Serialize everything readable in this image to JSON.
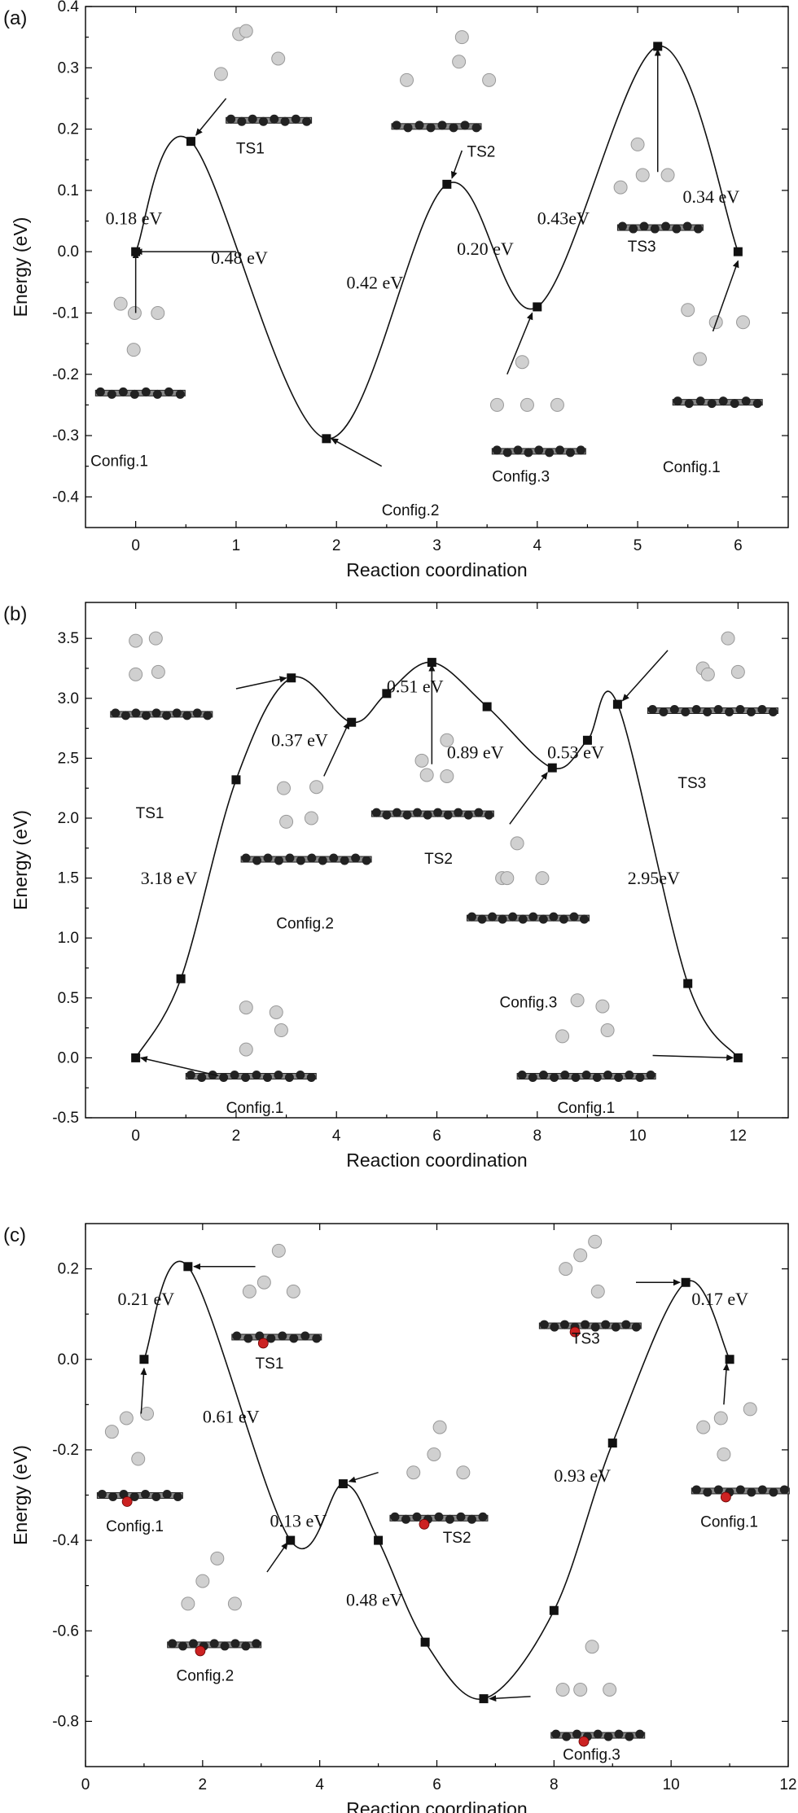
{
  "colors": {
    "line": "#111111",
    "hydrogen": "#d0d0d0",
    "carbon": "#222222",
    "substituent": "#cc2222"
  },
  "chart_data": [
    {
      "type": "line",
      "panel_label": "(a)",
      "xlabel": "Reaction coordination",
      "ylabel": "Energy (eV)",
      "xlim": [
        -0.5,
        6.5
      ],
      "ylim": [
        -0.45,
        0.4
      ],
      "xticks": [
        0,
        1,
        2,
        3,
        4,
        5,
        6
      ],
      "yticks": [
        -0.4,
        -0.3,
        -0.2,
        -0.1,
        0.0,
        0.1,
        0.2,
        0.3,
        0.4
      ],
      "ytick_labels": [
        "-0.4",
        "-0.3",
        "-0.2",
        "-0.1",
        "0.0",
        "0.1",
        "0.2",
        "0.3",
        "0.4"
      ],
      "xtick_labels": [
        "0",
        "1",
        "2",
        "3",
        "4",
        "5",
        "6"
      ],
      "x": [
        0,
        0.55,
        1.9,
        3.1,
        4.0,
        5.2,
        6.0
      ],
      "y": [
        0.0,
        0.18,
        -0.305,
        0.11,
        -0.09,
        0.335,
        0.0
      ],
      "barriers": [
        {
          "text": "0.18 eV",
          "x": -0.3,
          "y": 0.045
        },
        {
          "text": "0.48 eV",
          "x": 0.75,
          "y": -0.02
        },
        {
          "text": "0.42 eV",
          "x": 2.1,
          "y": -0.06
        },
        {
          "text": "0.20 eV",
          "x": 3.2,
          "y": -0.005
        },
        {
          "text": "0.43eV",
          "x": 4.0,
          "y": 0.045
        },
        {
          "text": "0.34 eV",
          "x": 5.45,
          "y": 0.08
        }
      ],
      "configs": [
        {
          "text": "Config.1",
          "x": -0.45,
          "y": -0.35
        },
        {
          "text": "TS1",
          "x": 1.0,
          "y": 0.16
        },
        {
          "text": "Config.2",
          "x": 2.45,
          "y": -0.43
        },
        {
          "text": "TS2",
          "x": 3.3,
          "y": 0.155
        },
        {
          "text": "Config.3",
          "x": 3.55,
          "y": -0.375
        },
        {
          "text": "TS3",
          "x": 4.9,
          "y": 0.0
        },
        {
          "text": "Config.1",
          "x": 5.25,
          "y": -0.36
        }
      ]
    },
    {
      "type": "line",
      "panel_label": "(b)",
      "xlabel": "Reaction coordination",
      "ylabel": "Energy (eV)",
      "xlim": [
        -1,
        13
      ],
      "ylim": [
        -0.5,
        3.8
      ],
      "xticks": [
        0,
        2,
        4,
        6,
        8,
        10,
        12
      ],
      "yticks": [
        -0.5,
        0.0,
        0.5,
        1.0,
        1.5,
        2.0,
        2.5,
        3.0,
        3.5
      ],
      "ytick_labels": [
        "-0.5",
        "0.0",
        "0.5",
        "1.0",
        "1.5",
        "2.0",
        "2.5",
        "3.0",
        "3.5"
      ],
      "xtick_labels": [
        "0",
        "2",
        "4",
        "6",
        "8",
        "10",
        "12"
      ],
      "x": [
        0,
        0.9,
        2.0,
        3.1,
        4.3,
        5.0,
        5.9,
        7.0,
        8.3,
        9.0,
        9.6,
        11.0,
        12.0
      ],
      "y": [
        0.0,
        0.66,
        2.32,
        3.17,
        2.8,
        3.04,
        3.3,
        2.93,
        2.42,
        2.65,
        2.95,
        0.62,
        0.0
      ],
      "barriers": [
        {
          "text": "3.18 eV",
          "x": 0.1,
          "y": 1.45
        },
        {
          "text": "0.37 eV",
          "x": 2.7,
          "y": 2.6
        },
        {
          "text": "0.51 eV",
          "x": 5.0,
          "y": 3.05
        },
        {
          "text": "0.89 eV",
          "x": 6.2,
          "y": 2.5
        },
        {
          "text": "0.53 eV",
          "x": 8.2,
          "y": 2.5
        },
        {
          "text": "2.95eV",
          "x": 9.8,
          "y": 1.45
        }
      ],
      "configs": [
        {
          "text": "TS1",
          "x": 0.0,
          "y": 2.0
        },
        {
          "text": "Config.2",
          "x": 2.8,
          "y": 1.08
        },
        {
          "text": "TS2",
          "x": 5.75,
          "y": 1.62
        },
        {
          "text": "Config.3",
          "x": 7.25,
          "y": 0.42
        },
        {
          "text": "Config.1",
          "x": 1.8,
          "y": -0.46
        },
        {
          "text": "Config.1",
          "x": 8.4,
          "y": -0.46
        },
        {
          "text": "TS3",
          "x": 10.8,
          "y": 2.25
        }
      ]
    },
    {
      "type": "line",
      "panel_label": "(c)",
      "xlabel": "Reaction coordination",
      "ylabel": "Energy (eV)",
      "xlim": [
        0,
        12
      ],
      "ylim": [
        -0.9,
        0.3
      ],
      "xticks": [
        0,
        2,
        4,
        6,
        8,
        10,
        12
      ],
      "yticks": [
        -0.8,
        -0.6,
        -0.4,
        -0.2,
        0.0,
        0.2
      ],
      "ytick_labels": [
        "-0.8",
        "-0.6",
        "-0.4",
        "-0.2",
        "0.0",
        "0.2"
      ],
      "xtick_labels": [
        "0",
        "2",
        "4",
        "6",
        "8",
        "10",
        "12"
      ],
      "x": [
        1.0,
        1.75,
        3.5,
        4.4,
        5.0,
        5.8,
        6.8,
        8.0,
        9.0,
        10.25,
        11.0
      ],
      "y": [
        0.0,
        0.205,
        -0.4,
        -0.275,
        -0.4,
        -0.625,
        -0.75,
        -0.555,
        -0.185,
        0.17,
        0.0
      ],
      "barriers": [
        {
          "text": "0.21 eV",
          "x": 0.55,
          "y": 0.12
        },
        {
          "text": "0.61 eV",
          "x": 2.0,
          "y": -0.14
        },
        {
          "text": "0.13 eV",
          "x": 3.15,
          "y": -0.37
        },
        {
          "text": "0.48 eV",
          "x": 4.45,
          "y": -0.545
        },
        {
          "text": "0.93 eV",
          "x": 8.0,
          "y": -0.27
        },
        {
          "text": "0.17 eV",
          "x": 10.35,
          "y": 0.12
        }
      ],
      "configs": [
        {
          "text": "Config.1",
          "x": 0.35,
          "y": -0.38
        },
        {
          "text": "TS1",
          "x": 2.9,
          "y": -0.02
        },
        {
          "text": "Config.2",
          "x": 1.55,
          "y": -0.71
        },
        {
          "text": "TS2",
          "x": 6.1,
          "y": -0.405
        },
        {
          "text": "Config.3",
          "x": 8.15,
          "y": -0.885
        },
        {
          "text": "TS3",
          "x": 8.3,
          "y": 0.035
        },
        {
          "text": "Config.1",
          "x": 10.5,
          "y": -0.37
        }
      ]
    }
  ]
}
